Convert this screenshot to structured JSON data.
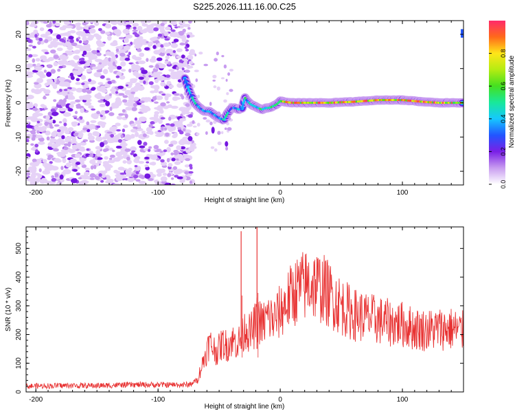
{
  "title": "S225.2026.111.16.00.C25",
  "chart_data": [
    {
      "type": "heatmap",
      "xlabel": "Height of straight line (km)",
      "ylabel": "Frequency (Hz)",
      "xlim": [
        -208,
        150
      ],
      "ylim": [
        -24,
        24
      ],
      "xticks": [
        -200,
        -100,
        0,
        100
      ],
      "yticks": [
        -20,
        -10,
        0,
        10,
        20
      ],
      "noise_region_x": [
        -208,
        -75
      ],
      "ridge": {
        "x": [
          -78,
          -74,
          -70,
          -66,
          -62,
          -58,
          -54,
          -50,
          -46,
          -43,
          -40,
          -37,
          -34,
          -31,
          -29,
          -27,
          -24,
          -21,
          -18,
          -15,
          -12,
          -9,
          -6,
          -3,
          0,
          5,
          10,
          20,
          40,
          60,
          80,
          100,
          110,
          120,
          130,
          140,
          150
        ],
        "y": [
          7,
          3,
          0,
          -1.5,
          -2.5,
          -2.5,
          -3.5,
          -4.5,
          -5,
          -3,
          -1.5,
          -1.5,
          -2,
          -1.5,
          1.5,
          0.5,
          -0.5,
          -1,
          -1.5,
          -2,
          -1.5,
          -1.5,
          -1,
          -0.5,
          0.5,
          0.2,
          0,
          0,
          0,
          0.3,
          0.8,
          0.8,
          0.5,
          0.2,
          0,
          0,
          0
        ],
        "amplitude": [
          0.3,
          0.35,
          0.4,
          0.35,
          0.3,
          0.4,
          0.35,
          0.3,
          0.45,
          0.35,
          0.3,
          0.35,
          0.4,
          0.4,
          0.45,
          0.35,
          0.4,
          0.4,
          0.45,
          0.45,
          0.4,
          0.45,
          0.5,
          0.55,
          0.6,
          0.8,
          0.9,
          0.9,
          0.9,
          0.85,
          0.9,
          0.9,
          0.85,
          0.8,
          0.75,
          0.8,
          0.8
        ]
      },
      "colorbar": {
        "label": "Normalized spectral amplitude",
        "range": [
          0,
          1
        ],
        "ticks": [
          "0.0",
          "0.2",
          "0.4",
          "0.6",
          "0.8"
        ],
        "tick_values": [
          0,
          0.2,
          0.4,
          0.6,
          0.8
        ]
      }
    },
    {
      "type": "line",
      "xlabel": "Height of straight line (km)",
      "ylabel": "SNR (10 * v/v)",
      "xlim": [
        -208,
        150
      ],
      "ylim": [
        0,
        575
      ],
      "xticks": [
        -200,
        -100,
        0,
        100
      ],
      "yticks": [
        0,
        100,
        200,
        300,
        400,
        500
      ],
      "series": [
        {
          "name": "SNR",
          "color": "#e83232",
          "x": [
            -208,
            -180,
            -150,
            -120,
            -90,
            -75,
            -68,
            -62,
            -58,
            -52,
            -47,
            -43,
            -40,
            -35,
            -31,
            -28,
            -25,
            -22,
            -20,
            -18,
            -15,
            -12,
            -10,
            -5,
            0,
            5,
            10,
            15,
            20,
            25,
            30,
            35,
            40,
            45,
            50,
            60,
            70,
            80,
            90,
            100,
            110,
            120,
            130,
            140,
            150
          ],
          "y": [
            20,
            22,
            22,
            25,
            25,
            25,
            40,
            120,
            170,
            140,
            170,
            160,
            180,
            170,
            190,
            230,
            200,
            220,
            240,
            260,
            230,
            250,
            260,
            250,
            280,
            310,
            340,
            360,
            370,
            380,
            370,
            360,
            340,
            320,
            300,
            270,
            260,
            250,
            240,
            235,
            220,
            215,
            220,
            220,
            210
          ],
          "spikes": [
            {
              "x": -32,
              "y": 560
            },
            {
              "x": -19,
              "y": 575
            }
          ]
        }
      ]
    }
  ]
}
